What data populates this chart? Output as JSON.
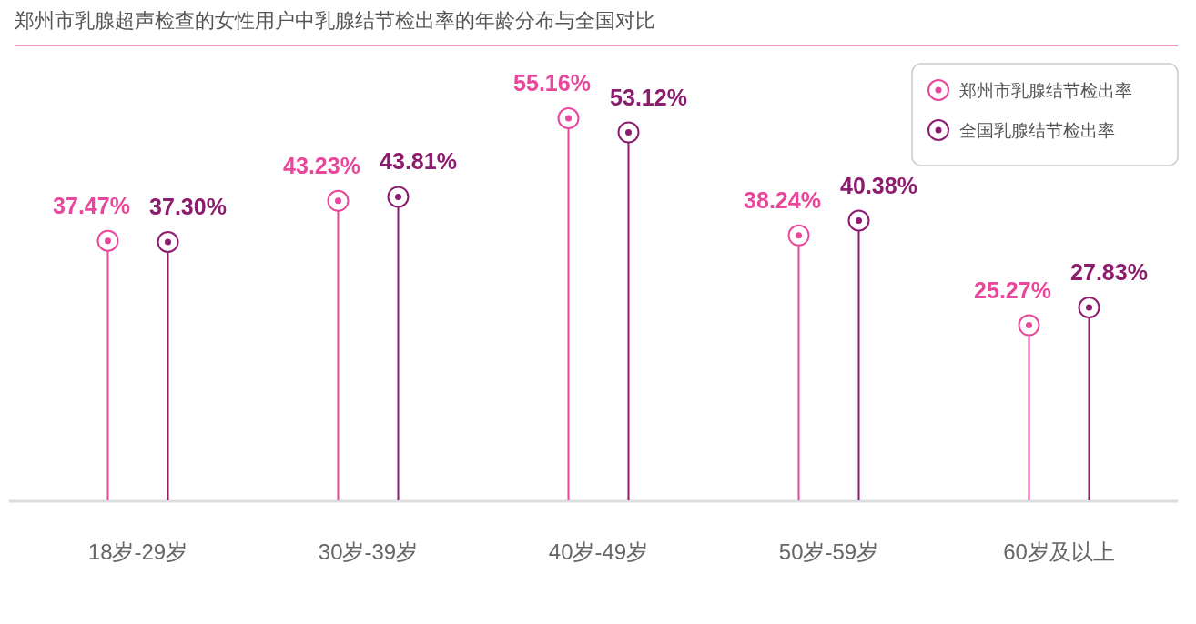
{
  "chart_data": {
    "type": "lollipop",
    "title": "郑州市乳腺超声检查的女性用户中乳腺结节检出率的年龄分布与全国对比",
    "categories": [
      "18岁-29岁",
      "30岁-39岁",
      "40岁-49岁",
      "50岁-59岁",
      "60岁及以上"
    ],
    "legend": "top right",
    "marker": "circle",
    "series": [
      {
        "name": "郑州市乳腺结节检出率",
        "color": "#e8479b",
        "values": [
          37.47,
          43.23,
          55.16,
          38.24,
          25.27
        ],
        "value_labels": [
          "37.47%",
          "43.23%",
          "55.16%",
          "38.24%",
          "25.27%"
        ]
      },
      {
        "name": "全国乳腺结节检出率",
        "color": "#8c1c6e",
        "values": [
          37.3,
          43.81,
          53.12,
          40.38,
          27.83
        ],
        "value_labels": [
          "37.30%",
          "43.81%",
          "53.12%",
          "40.38%",
          "27.83%"
        ]
      }
    ]
  }
}
